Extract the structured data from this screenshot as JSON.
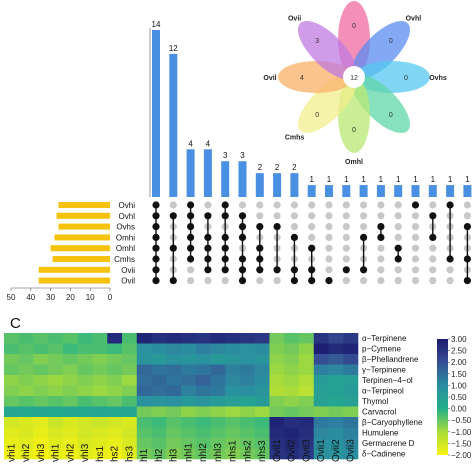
{
  "panel_labels": {
    "upset": "",
    "heatmap": "C"
  },
  "colors": {
    "bar_blue": "#4a90e2",
    "bar_yellow": "#f5c20d",
    "dot_on": "#111111",
    "dot_off": "#c8c8c8"
  },
  "chart_data": [
    {
      "type": "bar",
      "name": "upset-intersections",
      "values": [
        14,
        12,
        4,
        4,
        3,
        3,
        2,
        2,
        2,
        1,
        1,
        1,
        1,
        1,
        1,
        1,
        1,
        1,
        1
      ],
      "ylim": [
        0,
        15
      ]
    },
    {
      "type": "bar",
      "name": "upset-set-sizes",
      "sets": [
        "Ovhi",
        "Ovhl",
        "Ovhs",
        "Omhi",
        "Omhl",
        "Cmhs",
        "Ovii",
        "Ovil"
      ],
      "values": [
        26,
        27,
        26,
        28,
        30,
        29,
        36,
        36
      ],
      "axis_ticks": [
        "50",
        "40",
        "30",
        "20",
        "10",
        "0"
      ],
      "xlim": [
        50,
        0
      ]
    },
    {
      "type": "table",
      "name": "upset-matrix",
      "membership": [
        [
          1,
          1,
          1,
          1,
          1,
          1,
          1,
          1
        ],
        [
          0,
          1,
          0,
          0,
          1,
          0,
          0,
          1
        ],
        [
          1,
          1,
          1,
          1,
          1,
          1,
          0,
          0
        ],
        [
          0,
          1,
          0,
          1,
          1,
          1,
          1,
          0
        ],
        [
          1,
          1,
          0,
          1,
          1,
          1,
          1,
          0
        ],
        [
          0,
          1,
          1,
          1,
          0,
          1,
          1,
          1
        ],
        [
          0,
          0,
          1,
          0,
          1,
          1,
          1,
          0
        ],
        [
          0,
          0,
          1,
          0,
          0,
          0,
          1,
          0
        ],
        [
          0,
          0,
          0,
          1,
          0,
          0,
          1,
          1
        ],
        [
          0,
          0,
          0,
          0,
          1,
          0,
          1,
          1
        ],
        [
          0,
          0,
          0,
          0,
          0,
          0,
          0,
          1
        ],
        [
          0,
          0,
          0,
          0,
          0,
          0,
          1,
          0
        ],
        [
          0,
          0,
          0,
          1,
          0,
          0,
          1,
          0
        ],
        [
          0,
          0,
          1,
          1,
          0,
          0,
          0,
          0
        ],
        [
          0,
          0,
          0,
          0,
          1,
          1,
          0,
          0
        ],
        [
          1,
          0,
          0,
          0,
          0,
          0,
          0,
          0
        ],
        [
          0,
          1,
          0,
          1,
          0,
          0,
          0,
          0
        ],
        [
          1,
          0,
          0,
          0,
          0,
          1,
          0,
          0
        ],
        [
          0,
          0,
          1,
          0,
          0,
          1,
          0,
          1
        ]
      ]
    },
    {
      "type": "pie",
      "name": "flower-venn",
      "center_value": "12",
      "petals": [
        {
          "set": "",
          "value": "0",
          "color": "#f06aa0"
        },
        {
          "set": "Ovhl",
          "value": "0",
          "color": "#5a8cf0"
        },
        {
          "set": "Ovhs",
          "value": "0",
          "color": "#55c8f0"
        },
        {
          "set": "",
          "value": "0",
          "color": "#5fd6a8"
        },
        {
          "set": "Omhl",
          "value": "0",
          "color": "#b8e872"
        },
        {
          "set": "Cmhs",
          "value": "0",
          "color": "#f2ee8c"
        },
        {
          "set": "Ovil",
          "value": "4",
          "color": "#f9b06a"
        },
        {
          "set": "Ovii",
          "value": "3",
          "color": "#c07ae0"
        }
      ]
    },
    {
      "type": "heatmap",
      "name": "compound-heatmap",
      "rows": [
        "α−Terpinene",
        "p−Cymene",
        "β−Phellandrene",
        "γ−Terpinene",
        "Terpinen−4−ol",
        "α−Terpineol",
        "Thymol",
        "Carvacrol",
        "β−Caryophyllene",
        "Humulene",
        "Germacrene D",
        "δ−Cadinene"
      ],
      "columns": [
        "vhi1",
        "vhi2",
        "vhi3",
        "vhl1",
        "vhl2",
        "vhl3",
        "hs1",
        "hs2",
        "hs3",
        "hl1",
        "hl2",
        "hl3",
        "nhl1",
        "nhl2",
        "nhl3",
        "nhs1",
        "nhs2",
        "nhs3",
        "Ovil1",
        "Ovil2",
        "Ovil3",
        "Ovii1",
        "Ovii2",
        "Ovii3"
      ],
      "values": [
        [
          -0.4,
          -0.3,
          -0.4,
          -0.3,
          -0.4,
          -0.2,
          -0.3,
          2.7,
          -0.3,
          2.8,
          2.6,
          2.7,
          2.6,
          2.5,
          2.7,
          2.6,
          2.5,
          2.4,
          -0.6,
          -0.4,
          -0.5,
          2.5,
          2.2,
          2.4
        ],
        [
          -0.3,
          -0.4,
          -0.3,
          -0.4,
          -0.2,
          -0.3,
          -0.3,
          -0.2,
          -0.4,
          0.9,
          1.0,
          1.1,
          1.0,
          1.2,
          1.1,
          1.0,
          0.9,
          1.0,
          -0.7,
          -0.6,
          -0.8,
          2.9,
          2.7,
          2.8
        ],
        [
          -0.6,
          -0.5,
          -0.7,
          -0.6,
          -0.5,
          -0.6,
          -0.7,
          -0.6,
          -0.5,
          0.8,
          0.7,
          0.9,
          0.8,
          0.9,
          0.7,
          0.8,
          0.9,
          0.8,
          -0.8,
          -0.7,
          -0.9,
          2.0,
          1.8,
          2.1
        ],
        [
          -0.5,
          -0.6,
          -0.5,
          -0.6,
          -0.7,
          -0.5,
          -0.6,
          -0.5,
          -0.6,
          1.6,
          1.4,
          1.5,
          1.3,
          1.4,
          1.6,
          1.2,
          1.3,
          1.1,
          -0.9,
          -0.8,
          -0.9,
          1.2,
          1.1,
          1.3
        ],
        [
          -0.8,
          -0.7,
          -0.8,
          -0.9,
          -0.8,
          -0.7,
          -0.8,
          -0.7,
          -0.9,
          1.5,
          1.6,
          1.4,
          1.5,
          1.7,
          1.4,
          1.1,
          1.2,
          1.0,
          -1.0,
          -0.9,
          -1.1,
          0.6,
          0.4,
          0.5
        ],
        [
          -0.7,
          -0.8,
          -0.7,
          -0.8,
          -0.7,
          -0.8,
          -0.9,
          -0.8,
          -0.7,
          1.6,
          1.5,
          1.6,
          1.2,
          1.4,
          1.3,
          0.9,
          1.0,
          0.8,
          -1.1,
          -1.0,
          -1.2,
          0.5,
          0.4,
          0.6
        ],
        [
          -0.5,
          -0.4,
          -0.5,
          -0.4,
          -0.5,
          -0.3,
          -0.4,
          -0.5,
          -0.3,
          0.9,
          0.8,
          0.9,
          0.7,
          0.8,
          0.6,
          0.5,
          0.4,
          0.6,
          -0.7,
          -0.8,
          -0.7,
          0.4,
          0.3,
          0.5
        ],
        [
          0.3,
          0.2,
          0.3,
          0.2,
          0.3,
          0.2,
          0.3,
          0.2,
          0.3,
          -0.6,
          -0.7,
          -0.6,
          -0.8,
          -0.7,
          -0.8,
          -0.9,
          -0.8,
          -0.9,
          -0.6,
          -0.5,
          -0.6,
          -0.7,
          -0.6,
          -0.7
        ],
        [
          -1.5,
          -1.6,
          -1.7,
          -1.4,
          -1.6,
          -1.5,
          -1.4,
          -1.5,
          -1.6,
          -0.3,
          -0.2,
          -0.4,
          -0.3,
          -0.2,
          -0.3,
          -0.4,
          -0.3,
          -0.2,
          2.8,
          2.6,
          2.7,
          1.3,
          1.2,
          1.4
        ],
        [
          -1.7,
          -1.6,
          -1.8,
          -1.6,
          -1.7,
          -1.5,
          -1.6,
          -1.7,
          -1.5,
          -0.4,
          -0.3,
          -0.5,
          -0.4,
          -0.3,
          -0.4,
          -0.5,
          -0.4,
          -0.3,
          2.7,
          2.8,
          2.6,
          1.1,
          1.0,
          1.2
        ],
        [
          -1.8,
          -1.7,
          -1.9,
          -1.7,
          -1.8,
          -1.6,
          -1.7,
          -1.8,
          -1.6,
          -0.5,
          -0.4,
          -0.6,
          -0.5,
          -0.4,
          -0.5,
          -0.6,
          -0.5,
          -0.4,
          2.6,
          2.7,
          2.5,
          1.0,
          0.9,
          1.1
        ],
        [
          -1.9,
          -1.8,
          -2.0,
          -1.8,
          -1.9,
          -1.7,
          -1.8,
          -1.9,
          -1.7,
          -0.6,
          -0.5,
          -0.7,
          -0.6,
          -0.5,
          -0.6,
          -0.7,
          -0.6,
          -0.5,
          2.5,
          2.6,
          2.4,
          0.9,
          0.8,
          1.0
        ]
      ],
      "color_scale": [
        "#f8f212",
        "#a9dc3a",
        "#22b089",
        "#2b8da0",
        "#364e94",
        "#1b1a6e"
      ],
      "colorbar_ticks": [
        "3.00",
        "2.50",
        "2.00",
        "1.50",
        "1.00",
        "0.50",
        "0.00",
        "−0.50",
        "−1.00",
        "−1.50",
        "−2.00"
      ],
      "vmin": -2.0,
      "vmax": 3.0
    }
  ]
}
